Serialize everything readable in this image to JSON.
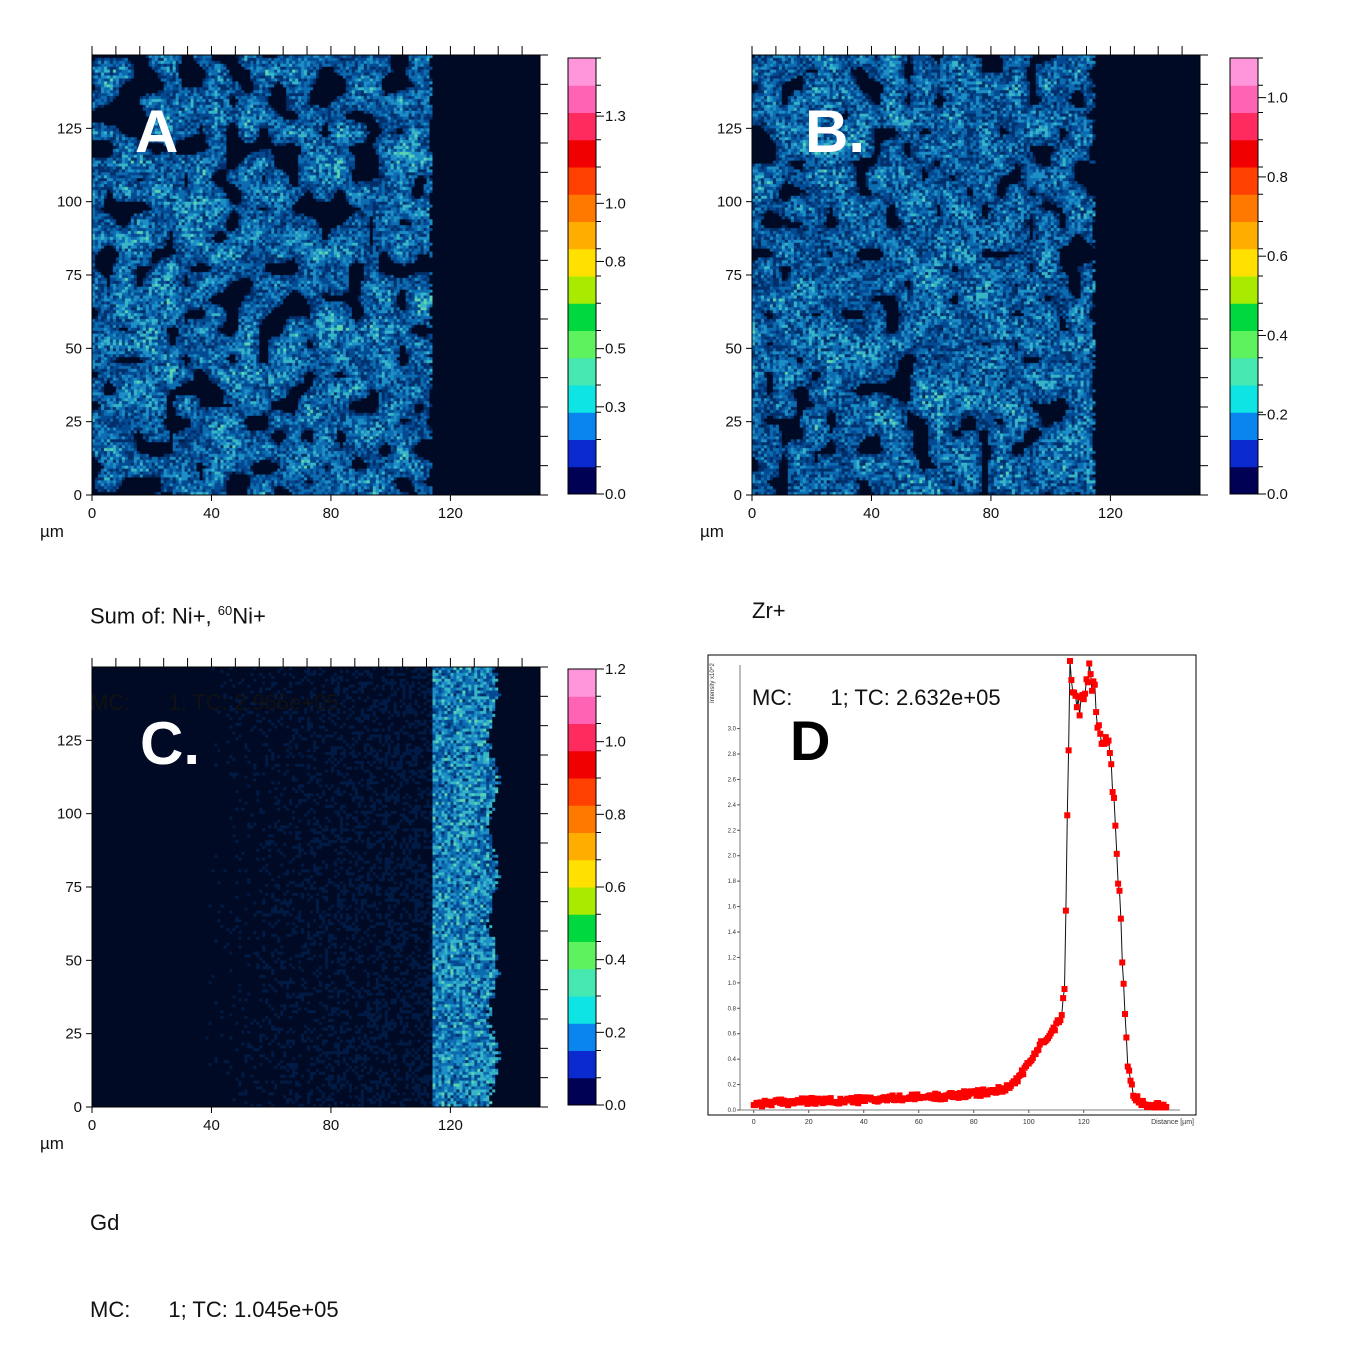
{
  "colorbar_colors": [
    "#000054",
    "#0a2ad0",
    "#0a84ee",
    "#0fe4e4",
    "#44e8b0",
    "#5ef25e",
    "#00d840",
    "#a8ea00",
    "#ffe000",
    "#ffae00",
    "#ff7800",
    "#ff4000",
    "#f00000",
    "#ff2a5e",
    "#ff64b4",
    "#ff96dc"
  ],
  "map_palette": [
    "#000a24",
    "#001c46",
    "#022f6a",
    "#044a92",
    "#0d6cb0",
    "#1e8fc6",
    "#38b6c8",
    "#5cd4b2"
  ],
  "maps": [
    {
      "panel_label": "A",
      "unit": "µm",
      "x_ticks": [
        0,
        40,
        80,
        120
      ],
      "y_ticks": [
        0,
        25,
        50,
        75,
        100,
        125
      ],
      "extent_um": 150,
      "colorbar_ticks": [
        "0.0",
        "0.3",
        "0.5",
        "0.8",
        "1.0",
        "1.3"
      ],
      "colorbar_max": 1.5,
      "species_prefix": "Sum of: Ni+, ",
      "species_sup": "60",
      "species_suffix": "Ni+",
      "mc_label": "MC:",
      "mc_value": "1; TC: 2.966e+05",
      "pattern": "A"
    },
    {
      "panel_label": "B.",
      "unit": "µm",
      "x_ticks": [
        0,
        40,
        80,
        120
      ],
      "y_ticks": [
        0,
        25,
        50,
        75,
        100,
        125
      ],
      "extent_um": 150,
      "colorbar_ticks": [
        "0.0",
        "0.2",
        "0.4",
        "0.6",
        "0.8",
        "1.0"
      ],
      "colorbar_max": 1.1,
      "species_prefix": "Zr+",
      "species_sup": "",
      "species_suffix": "",
      "mc_label": "MC:",
      "mc_value": "1; TC: 2.632e+05",
      "pattern": "B"
    },
    {
      "panel_label": "C.",
      "unit": "µm",
      "x_ticks": [
        0,
        40,
        80,
        120
      ],
      "y_ticks": [
        0,
        25,
        50,
        75,
        100,
        125
      ],
      "extent_um": 150,
      "colorbar_ticks": [
        "0.0",
        "0.2",
        "0.4",
        "0.6",
        "0.8",
        "1.0",
        "1.2"
      ],
      "colorbar_max": 1.2,
      "species_prefix": "Gd",
      "species_sup": "",
      "species_suffix": "",
      "mc_label": "MC:",
      "mc_value": "1; TC: 1.045e+05",
      "pattern": "C"
    }
  ],
  "chart_data": {
    "type": "line",
    "panel_label": "D",
    "xlabel": "Distance [µm]",
    "ylabel": "Intensity x10^2",
    "xlim": [
      -5,
      155
    ],
    "ylim": [
      0,
      3.5
    ],
    "x_ticks": [
      0,
      20,
      40,
      60,
      80,
      100,
      120
    ],
    "y_ticks": [
      "0.0",
      "0.2",
      "0.4",
      "0.6",
      "0.8",
      "1.0",
      "1.2",
      "1.4",
      "1.6",
      "1.8",
      "2.0",
      "2.2",
      "2.4",
      "2.6",
      "2.8",
      "3.0"
    ],
    "line_color": "#111111",
    "marker_color": "#ff0000",
    "series": [
      {
        "x": [
          0,
          10,
          20,
          30,
          40,
          50,
          60,
          70,
          80,
          85,
          90,
          95,
          100,
          105,
          110,
          112,
          113,
          114,
          115,
          116,
          118,
          120,
          122,
          124,
          126,
          128,
          130,
          132,
          134,
          136,
          138,
          140,
          142,
          145,
          150
        ],
        "y": [
          0.05,
          0.06,
          0.07,
          0.07,
          0.08,
          0.09,
          0.1,
          0.11,
          0.13,
          0.14,
          0.16,
          0.22,
          0.36,
          0.54,
          0.66,
          0.75,
          1.05,
          2.3,
          3.45,
          3.3,
          3.15,
          3.32,
          3.46,
          3.3,
          2.9,
          3.0,
          2.7,
          2.0,
          1.2,
          0.35,
          0.13,
          0.07,
          0.05,
          0.04,
          0.04
        ]
      }
    ]
  }
}
